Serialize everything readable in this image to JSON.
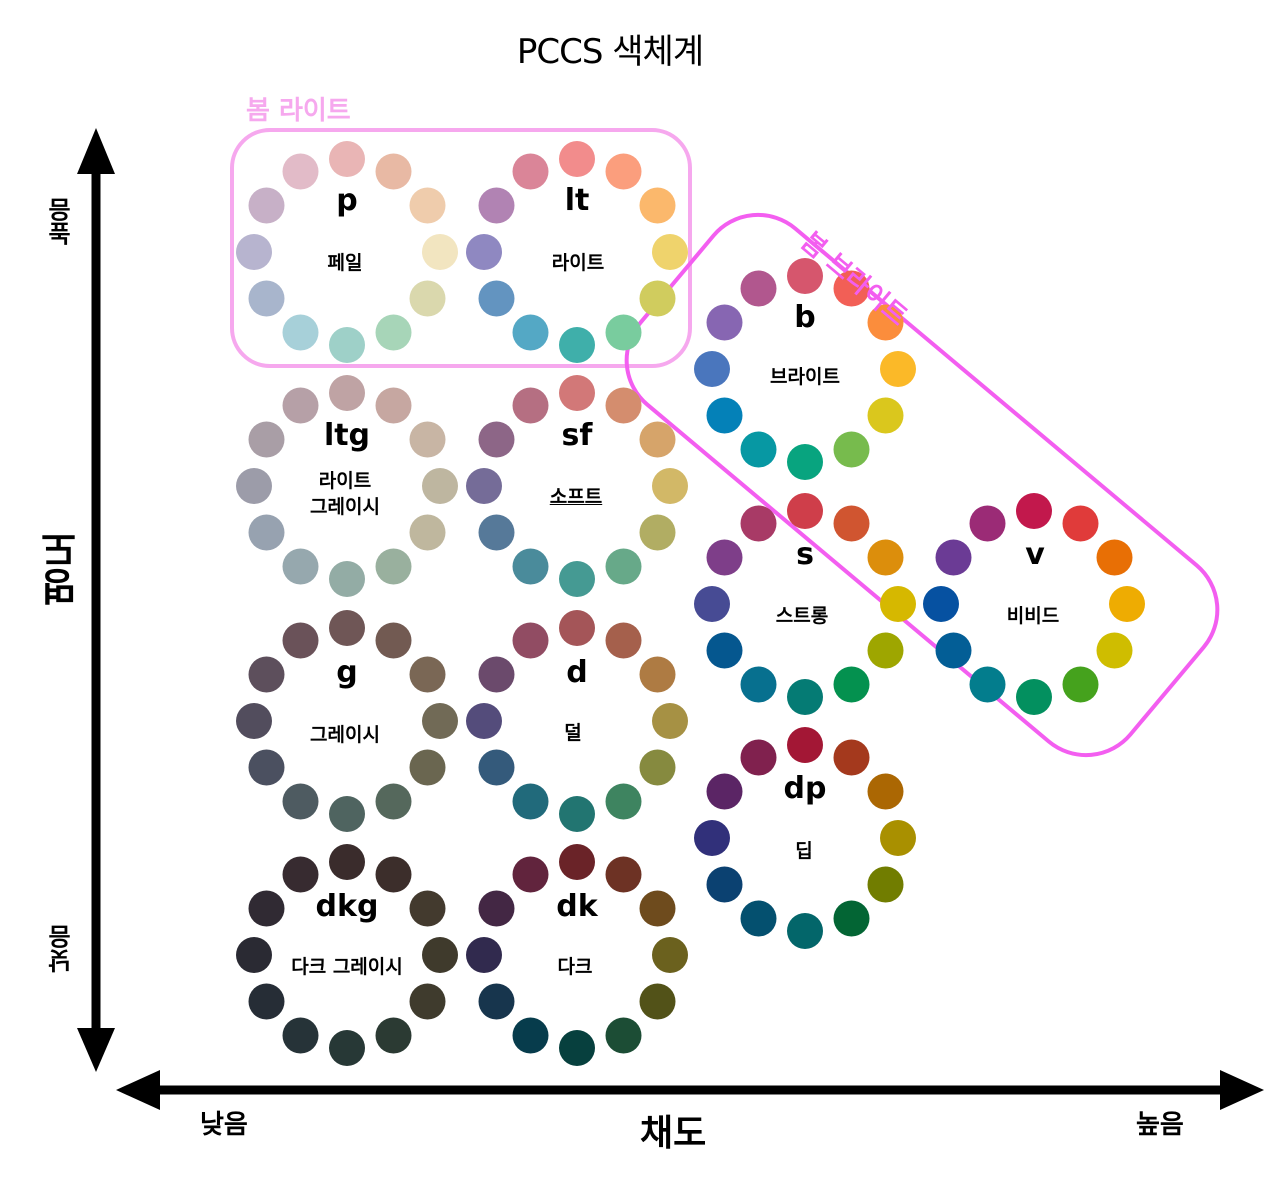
{
  "title": "PCCS  색체계",
  "season_groups": [
    {
      "label": "봄 라이트",
      "color": "#f6a8ee"
    },
    {
      "label": "봄 브라이트",
      "color": "#f35ef0"
    }
  ],
  "axes": {
    "y_label": "명도",
    "y_high": "높음",
    "y_low": "낮음",
    "x_label": "채도",
    "x_low": "낮음",
    "x_high": "높음"
  },
  "tones": [
    {
      "code": "p",
      "name": "페일",
      "colors": [
        "#e9b5b5",
        "#e8b9a4",
        "#efccac",
        "#f2e5c0",
        "#dad8ad",
        "#a7d5b8",
        "#9ed0c8",
        "#a7d0d9",
        "#a8b5cc",
        "#b7b4cf",
        "#c7b0c7",
        "#e2bbc8"
      ]
    },
    {
      "code": "lt",
      "name": "라이트",
      "colors": [
        "#f28c8c",
        "#fb9e7d",
        "#fbb86c",
        "#efd36c",
        "#d0cc5e",
        "#79cc9e",
        "#3fafaa",
        "#54a8c5",
        "#6394c0",
        "#8f88c1",
        "#b183b3",
        "#da8598"
      ]
    },
    {
      "code": "ltg",
      "name": "라이트\n그레이시",
      "colors": [
        "#bfa3a4",
        "#c6a7a1",
        "#c8b5a4",
        "#beb6a0",
        "#bfb79e",
        "#99b09e",
        "#93aca5",
        "#96a8ae",
        "#97a2b0",
        "#9c9ca9",
        "#a99ea6",
        "#b6a0a7"
      ]
    },
    {
      "code": "sf",
      "name": "소프트",
      "colors": [
        "#d27878",
        "#d48d6e",
        "#d6a46a",
        "#d2b867",
        "#b1ad63",
        "#67a989",
        "#459a93",
        "#4a8b9b",
        "#567999",
        "#756c98",
        "#8d6687",
        "#b56f82"
      ]
    },
    {
      "code": "g",
      "name": "그레이시",
      "colors": [
        "#6f5656",
        "#725a52",
        "#7a6755",
        "#716a56",
        "#6a6650",
        "#55685c",
        "#4f6460",
        "#4e5b61",
        "#4b5060",
        "#524d5d",
        "#5d4f5c",
        "#6a5259"
      ]
    },
    {
      "code": "d",
      "name": "덜",
      "colors": [
        "#a45558",
        "#a5604c",
        "#ae7b43",
        "#a69144",
        "#868a3f",
        "#3e8460",
        "#227571",
        "#216a7b",
        "#345a7b",
        "#544c7b",
        "#6b4a6c",
        "#914c63"
      ]
    },
    {
      "code": "dkg",
      "name": "다크 그레이시",
      "colors": [
        "#3a2c2c",
        "#3c2e2b",
        "#433a2e",
        "#3f3a2c",
        "#3f3b2d",
        "#2b3a33",
        "#273836",
        "#263338",
        "#262d36",
        "#2a2a33",
        "#302a33",
        "#372b30"
      ]
    },
    {
      "code": "dk",
      "name": "다크",
      "colors": [
        "#6a2328",
        "#6d3224",
        "#6e4b1d",
        "#6b611e",
        "#525218",
        "#1c4d35",
        "#07403e",
        "#073c4c",
        "#17354d",
        "#312a4e",
        "#432744",
        "#61243d"
      ]
    },
    {
      "code": "b",
      "name": "브라이트",
      "colors": [
        "#d6566d",
        "#f25f56",
        "#fb8d3c",
        "#fbb928",
        "#dac71d",
        "#77bb4d",
        "#08a47f",
        "#0798a3",
        "#0481b8",
        "#4a76bd",
        "#8766b2",
        "#b1578e"
      ]
    },
    {
      "code": "s",
      "name": "스트롱",
      "colors": [
        "#cf3e4a",
        "#d05530",
        "#dc8e0c",
        "#d6b800",
        "#9ea600",
        "#04914f",
        "#057b74",
        "#07708f",
        "#05578f",
        "#474b94",
        "#7e3e89",
        "#a83a66"
      ]
    },
    {
      "code": "v",
      "name": "비비드",
      "colors": [
        "#c2184c",
        "#e03b3a",
        "#e86f05",
        "#eeac02",
        "#cfbd00",
        "#45a21d",
        "#03905f",
        "#037d8d",
        "#035e96",
        "#0651a1",
        "#6b3b95",
        "#9b2b76"
      ]
    },
    {
      "code": "dp",
      "name": "딥",
      "colors": [
        "#a31735",
        "#a4391d",
        "#ab6703",
        "#a99000",
        "#717d00",
        "#036534",
        "#03666a",
        "#04506f",
        "#0b4171",
        "#31307a",
        "#5b2565",
        "#80214e"
      ]
    }
  ]
}
